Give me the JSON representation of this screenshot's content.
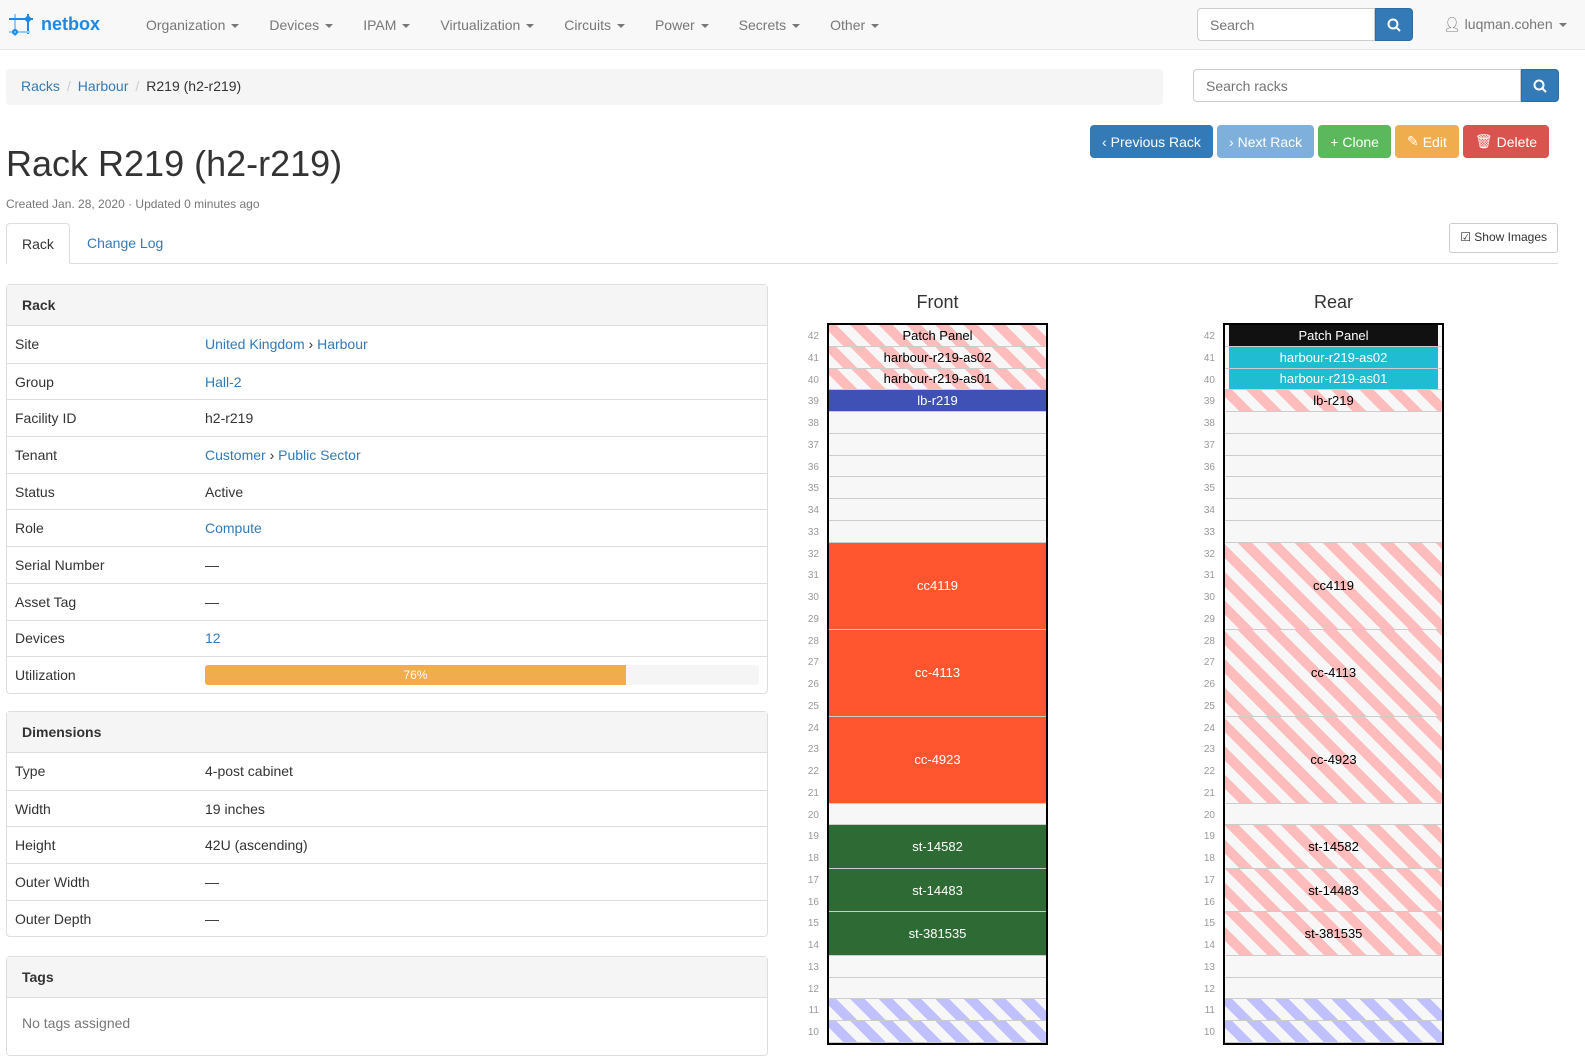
{
  "nav": {
    "brand": "netbox",
    "menu": [
      "Organization",
      "Devices",
      "IPAM",
      "Virtualization",
      "Circuits",
      "Power",
      "Secrets",
      "Other"
    ],
    "search_placeholder": "Search",
    "user": "luqman.cohen"
  },
  "breadcrumb": [
    "Racks",
    "Harbour",
    "R219 (h2-r219)"
  ],
  "rack_search_placeholder": "Search racks",
  "buttons": [
    {
      "label": "Previous Rack",
      "icon": "‹",
      "color": "#337ab7"
    },
    {
      "label": "Next Rack",
      "icon": "›",
      "color": "#7fb0dc"
    },
    {
      "label": "Clone",
      "icon": "+",
      "color": "#5cb85c"
    },
    {
      "label": "Edit",
      "icon": "✎",
      "color": "#f0ad4e"
    },
    {
      "label": "Delete",
      "icon": "🗑",
      "color": "#d9534f"
    }
  ],
  "title": "Rack R219 (h2-r219)",
  "meta": "Created Jan. 28, 2020 · Updated 0 minutes ago",
  "tabs": [
    "Rack",
    "Change Log"
  ],
  "show_images": "Show Images",
  "rack_panel": {
    "title": "Rack",
    "rows": [
      {
        "k": "Site",
        "v": [
          "United Kingdom",
          "Harbour"
        ],
        "link": true
      },
      {
        "k": "Group",
        "v": [
          "Hall-2"
        ],
        "link": true
      },
      {
        "k": "Facility ID",
        "v": [
          "h2-r219"
        ]
      },
      {
        "k": "Tenant",
        "v": [
          "Customer",
          "Public Sector"
        ],
        "link": true
      },
      {
        "k": "Status",
        "v": [
          "Active"
        ]
      },
      {
        "k": "Role",
        "v": [
          "Compute"
        ],
        "link": true
      },
      {
        "k": "Serial Number",
        "v": [
          "—"
        ]
      },
      {
        "k": "Asset Tag",
        "v": [
          "—"
        ]
      },
      {
        "k": "Devices",
        "v": [
          "12"
        ],
        "link": true
      }
    ],
    "utilization_label": "Utilization",
    "utilization": 76,
    "utilization_text": "76%"
  },
  "dimensions": {
    "title": "Dimensions",
    "rows": [
      {
        "k": "Type",
        "v": "4-post cabinet"
      },
      {
        "k": "Width",
        "v": "19 inches"
      },
      {
        "k": "Height",
        "v": "42U (ascending)"
      },
      {
        "k": "Outer Width",
        "v": "—"
      },
      {
        "k": "Outer Depth",
        "v": "—"
      }
    ]
  },
  "tags": {
    "title": "Tags",
    "empty": "No tags assigned"
  },
  "elevation": {
    "front_label": "Front",
    "rear_label": "Rear",
    "top_unit": 42,
    "bottom_unit": 10,
    "devices": [
      {
        "name": "Patch Panel",
        "pos": 42,
        "u": 1,
        "front": "stripe",
        "rear": "#111111"
      },
      {
        "name": "harbour-r219-as02",
        "pos": 41,
        "u": 1,
        "front": "stripe",
        "rear": "#1fbcd2"
      },
      {
        "name": "harbour-r219-as01",
        "pos": 40,
        "u": 1,
        "front": "stripe",
        "rear": "#1fbcd2"
      },
      {
        "name": "lb-r219",
        "pos": 39,
        "u": 1,
        "front": "#3f51b5",
        "rear": "stripe"
      },
      {
        "name": "cc4119",
        "pos": 29,
        "u": 4,
        "front": "#ff5630",
        "rear": "stripe"
      },
      {
        "name": "cc-4113",
        "pos": 25,
        "u": 4,
        "front": "#ff5630",
        "rear": "stripe"
      },
      {
        "name": "cc-4923",
        "pos": 21,
        "u": 4,
        "front": "#ff5630",
        "rear": "stripe"
      },
      {
        "name": "st-14582",
        "pos": 18,
        "u": 2,
        "front": "#2e6b34",
        "rear": "stripe"
      },
      {
        "name": "st-14483",
        "pos": 16,
        "u": 2,
        "front": "#2e6b34",
        "rear": "stripe"
      },
      {
        "name": "st-381535",
        "pos": 14,
        "u": 2,
        "front": "#2e6b34",
        "rear": "stripe"
      }
    ],
    "reserved_units": [
      11,
      10
    ]
  }
}
